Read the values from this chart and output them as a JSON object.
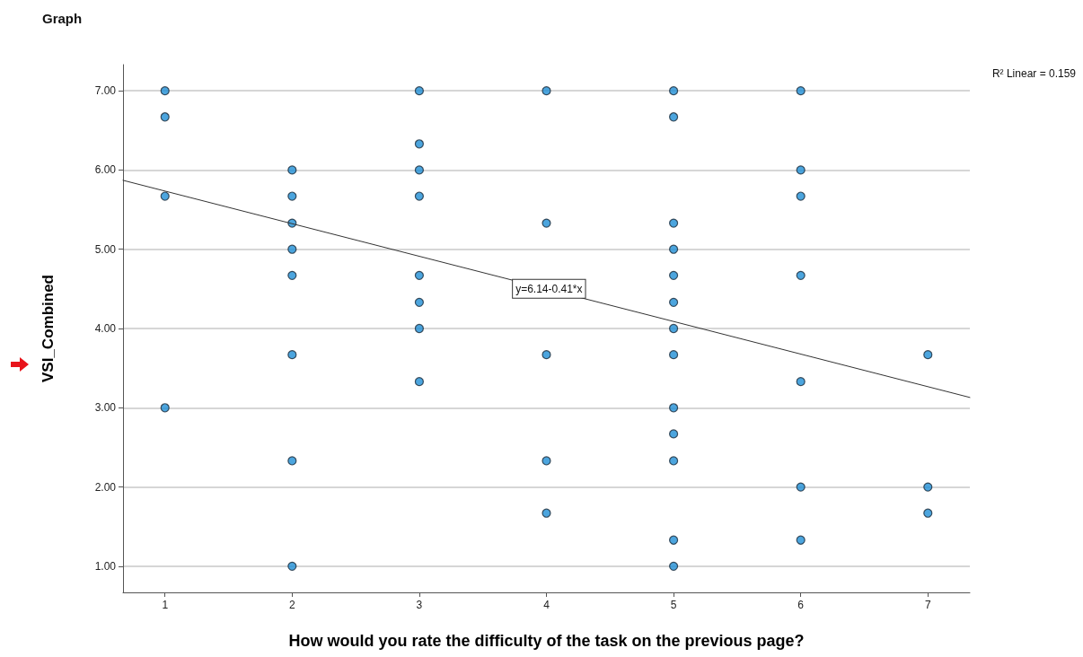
{
  "chart_data": {
    "type": "scatter",
    "title": "Graph",
    "xlabel": "How would you rate the difficulty of the task on the previous page?",
    "ylabel": "VSI_Combined",
    "xlim": [
      0.67,
      7.33
    ],
    "xticks": [
      1,
      2,
      3,
      4,
      5,
      6,
      7
    ],
    "ylim": [
      0.67,
      7.33
    ],
    "yticks": [
      {
        "value": 1,
        "label": "1.00"
      },
      {
        "value": 2,
        "label": "2.00"
      },
      {
        "value": 3,
        "label": "3.00"
      },
      {
        "value": 4,
        "label": "4.00"
      },
      {
        "value": 5,
        "label": "5.00"
      },
      {
        "value": 6,
        "label": "6.00"
      },
      {
        "value": 7,
        "label": "7.00"
      }
    ],
    "grid": "y",
    "marker": "circle",
    "annotations": [
      "R² Linear = 0.159",
      {
        "text": "y=6.14-0.41*x",
        "x": 4.02,
        "y": 4.5
      }
    ],
    "series": [
      {
        "color": "#1f8fd6",
        "x": [
          1,
          1,
          1,
          1,
          2,
          2,
          2,
          2,
          2,
          2,
          2,
          2,
          3,
          3,
          3,
          3,
          3,
          3,
          3,
          3,
          4,
          4,
          4,
          4,
          4,
          5,
          5,
          5,
          5,
          5,
          5,
          5,
          5,
          5,
          5,
          5,
          5,
          5,
          6,
          6,
          6,
          6,
          6,
          6,
          6,
          7,
          7,
          7
        ],
        "values": [
          7,
          6.67,
          5.67,
          3,
          6,
          5.67,
          5.33,
          5,
          4.67,
          3.67,
          2.33,
          1,
          7,
          6.33,
          6,
          5.67,
          4.67,
          4.33,
          4,
          3.33,
          7,
          5.33,
          3.67,
          2.33,
          1.67,
          7,
          6.67,
          5.33,
          5,
          4.67,
          4.33,
          4,
          3.67,
          3,
          2.67,
          2.33,
          1.33,
          1,
          7,
          6,
          5.67,
          4.67,
          3.33,
          2,
          1.33,
          3.67,
          2,
          1.67
        ]
      },
      {
        "type": "line",
        "color": "#333333",
        "marker": "none",
        "line_style": "solid",
        "x": [
          0.67,
          7.33
        ],
        "values": [
          5.87,
          3.13
        ]
      }
    ]
  }
}
